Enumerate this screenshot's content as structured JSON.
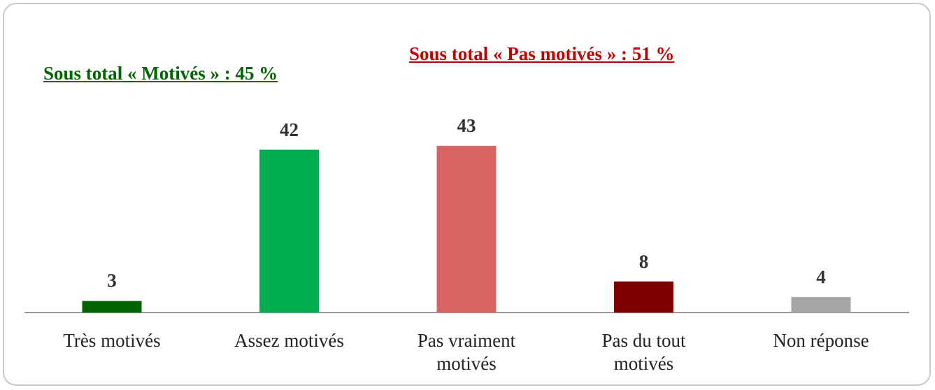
{
  "chart_data": {
    "type": "bar",
    "annotations": [
      {
        "text": "Sous total « Motivés » : 45 %",
        "color": "#006600"
      },
      {
        "text": "Sous total « Pas motivés » : 51 %",
        "color": "#c00000"
      }
    ],
    "categories": [
      "Très motivés",
      "Assez motivés",
      "Pas vraiment motivés",
      "Pas du tout motivés",
      "Non réponse"
    ],
    "values": [
      3,
      42,
      43,
      8,
      4
    ],
    "colors": [
      "#006400",
      "#00b050",
      "#d96464",
      "#800000",
      "#a6a6a6"
    ]
  }
}
